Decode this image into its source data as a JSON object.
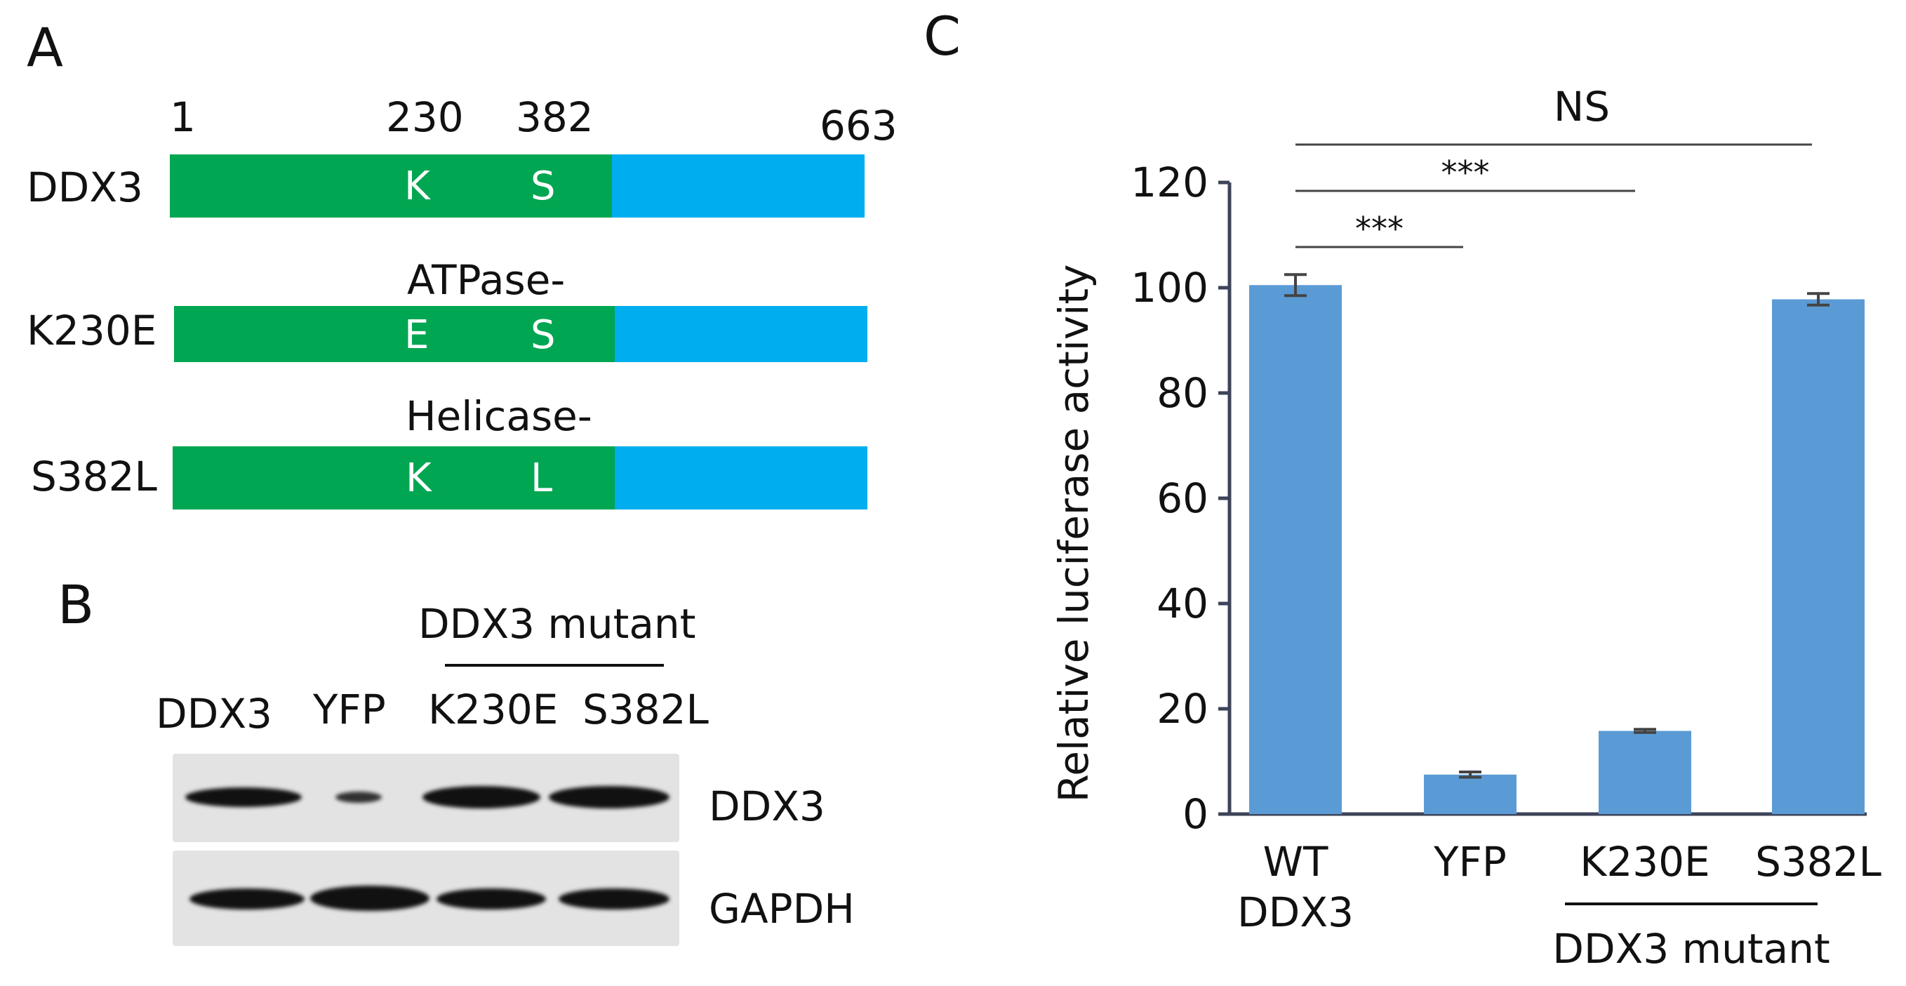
{
  "panels": {
    "a": {
      "letter": "A",
      "positions": [
        "1",
        "230",
        "382",
        "663"
      ],
      "constructs": [
        {
          "name": "DDX3",
          "residue1": "K",
          "residue2": "S",
          "above_label": ""
        },
        {
          "name": "K230E",
          "residue1": "E",
          "residue2": "S",
          "above_label": "ATPase-"
        },
        {
          "name": "S382L",
          "residue1": "K",
          "residue2": "L",
          "above_label": "Helicase-"
        }
      ],
      "colors": {
        "helicase_core": "#00a651",
        "c_terminal": "#00aeef"
      }
    },
    "b": {
      "letter": "B",
      "group_label": "DDX3 mutant",
      "lanes": [
        "DDX3",
        "YFP",
        "K230E",
        "S382L"
      ],
      "blots": [
        "DDX3",
        "GAPDH"
      ]
    },
    "c": {
      "letter": "C",
      "sig_labels": [
        "***",
        "***",
        "NS"
      ],
      "group_label": "DDX3 mutant"
    }
  },
  "chart_data": {
    "type": "bar",
    "categories": [
      "WT\nDDX3",
      "YFP",
      "K230E",
      "S382L"
    ],
    "values": [
      100.5,
      7.5,
      15.8,
      97.8
    ],
    "errors": [
      2.0,
      0.5,
      0.3,
      1.1
    ],
    "ylabel": "Relative luciferase activity",
    "xlabel": "",
    "ylim": [
      0,
      120
    ],
    "yticks": [
      0,
      20,
      40,
      60,
      80,
      100,
      120
    ],
    "bar_color": "#5b9bd5",
    "grid": false,
    "significance": [
      {
        "from": "WT\nDDX3",
        "to": "YFP",
        "label": "***"
      },
      {
        "from": "WT\nDDX3",
        "to": "K230E",
        "label": "***"
      },
      {
        "from": "WT\nDDX3",
        "to": "S382L",
        "label": "NS"
      }
    ]
  }
}
